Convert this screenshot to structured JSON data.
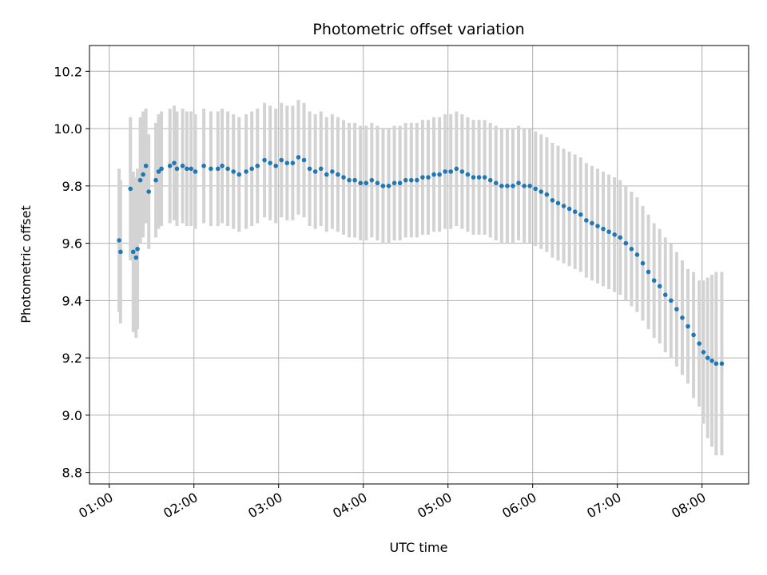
{
  "chart_data": {
    "type": "scatter",
    "title": "Photometric offset variation",
    "xlabel": "UTC time",
    "ylabel": "Photometric offset",
    "xlim": [
      "00:46",
      "08:33"
    ],
    "ylim": [
      8.76,
      10.29
    ],
    "x_ticks": [
      "01:00",
      "02:00",
      "03:00",
      "04:00",
      "05:00",
      "06:00",
      "07:00",
      "08:00"
    ],
    "y_ticks": [
      "8.8",
      "9.0",
      "9.2",
      "9.4",
      "9.6",
      "9.8",
      "10.0",
      "10.2"
    ],
    "grid": true,
    "marker_color": "#1f77b4",
    "errorbar_color": "#d3d3d3",
    "series": [
      {
        "x": [
          "01:07",
          "01:08",
          "01:15",
          "01:17",
          "01:19",
          "01:20",
          "01:22",
          "01:24",
          "01:26",
          "01:28",
          "01:33",
          "01:35",
          "01:37",
          "01:43",
          "01:46",
          "01:48",
          "01:52",
          "01:55",
          "01:58",
          "02:01",
          "02:07",
          "02:12",
          "02:17",
          "02:20",
          "02:24",
          "02:28",
          "02:32",
          "02:37",
          "02:41",
          "02:45",
          "02:50",
          "02:54",
          "02:58",
          "03:02",
          "03:06",
          "03:10",
          "03:14",
          "03:18",
          "03:22",
          "03:26",
          "03:30",
          "03:34",
          "03:38",
          "03:42",
          "03:46",
          "03:50",
          "03:54",
          "03:58",
          "04:02",
          "04:06",
          "04:10",
          "04:14",
          "04:18",
          "04:22",
          "04:26",
          "04:30",
          "04:34",
          "04:38",
          "04:42",
          "04:46",
          "04:50",
          "04:54",
          "04:58",
          "05:02",
          "05:06",
          "05:10",
          "05:14",
          "05:18",
          "05:22",
          "05:26",
          "05:30",
          "05:34",
          "05:38",
          "05:42",
          "05:46",
          "05:50",
          "05:54",
          "05:58",
          "06:02",
          "06:06",
          "06:10",
          "06:14",
          "06:18",
          "06:22",
          "06:26",
          "06:30",
          "06:34",
          "06:38",
          "06:42",
          "06:46",
          "06:50",
          "06:54",
          "06:58",
          "07:02",
          "07:06",
          "07:10",
          "07:14",
          "07:18",
          "07:22",
          "07:26",
          "07:30",
          "07:34",
          "07:38",
          "07:42",
          "07:46",
          "07:50",
          "07:54",
          "07:58",
          "08:01",
          "08:04",
          "08:07",
          "08:10",
          "08:14"
        ],
        "y": [
          9.61,
          9.57,
          9.79,
          9.57,
          9.55,
          9.58,
          9.82,
          9.84,
          9.87,
          9.78,
          9.82,
          9.85,
          9.86,
          9.87,
          9.88,
          9.86,
          9.87,
          9.86,
          9.86,
          9.85,
          9.87,
          9.86,
          9.86,
          9.87,
          9.86,
          9.85,
          9.84,
          9.85,
          9.86,
          9.87,
          9.89,
          9.88,
          9.87,
          9.89,
          9.88,
          9.88,
          9.9,
          9.89,
          9.86,
          9.85,
          9.86,
          9.84,
          9.85,
          9.84,
          9.83,
          9.82,
          9.82,
          9.81,
          9.81,
          9.82,
          9.81,
          9.8,
          9.8,
          9.81,
          9.81,
          9.82,
          9.82,
          9.82,
          9.83,
          9.83,
          9.84,
          9.84,
          9.85,
          9.85,
          9.86,
          9.85,
          9.84,
          9.83,
          9.83,
          9.83,
          9.82,
          9.81,
          9.8,
          9.8,
          9.8,
          9.81,
          9.8,
          9.8,
          9.79,
          9.78,
          9.77,
          9.75,
          9.74,
          9.73,
          9.72,
          9.71,
          9.7,
          9.68,
          9.67,
          9.66,
          9.65,
          9.64,
          9.63,
          9.62,
          9.6,
          9.58,
          9.56,
          9.53,
          9.5,
          9.47,
          9.45,
          9.42,
          9.4,
          9.37,
          9.34,
          9.31,
          9.28,
          9.25,
          9.22,
          9.2,
          9.19,
          9.18,
          9.18
        ],
        "yerr": [
          0.25,
          0.25,
          0.25,
          0.28,
          0.28,
          0.28,
          0.22,
          0.22,
          0.2,
          0.2,
          0.2,
          0.2,
          0.2,
          0.2,
          0.2,
          0.2,
          0.2,
          0.2,
          0.2,
          0.2,
          0.2,
          0.2,
          0.2,
          0.2,
          0.2,
          0.2,
          0.2,
          0.2,
          0.2,
          0.2,
          0.2,
          0.2,
          0.2,
          0.2,
          0.2,
          0.2,
          0.2,
          0.2,
          0.2,
          0.2,
          0.2,
          0.2,
          0.2,
          0.2,
          0.2,
          0.2,
          0.2,
          0.2,
          0.2,
          0.2,
          0.2,
          0.2,
          0.2,
          0.2,
          0.2,
          0.2,
          0.2,
          0.2,
          0.2,
          0.2,
          0.2,
          0.2,
          0.2,
          0.2,
          0.2,
          0.2,
          0.2,
          0.2,
          0.2,
          0.2,
          0.2,
          0.2,
          0.2,
          0.2,
          0.2,
          0.2,
          0.2,
          0.2,
          0.2,
          0.2,
          0.2,
          0.2,
          0.2,
          0.2,
          0.2,
          0.2,
          0.2,
          0.2,
          0.2,
          0.2,
          0.2,
          0.2,
          0.2,
          0.2,
          0.2,
          0.2,
          0.2,
          0.2,
          0.2,
          0.2,
          0.2,
          0.2,
          0.2,
          0.2,
          0.2,
          0.2,
          0.22,
          0.22,
          0.25,
          0.28,
          0.3,
          0.32,
          0.32
        ]
      }
    ]
  }
}
